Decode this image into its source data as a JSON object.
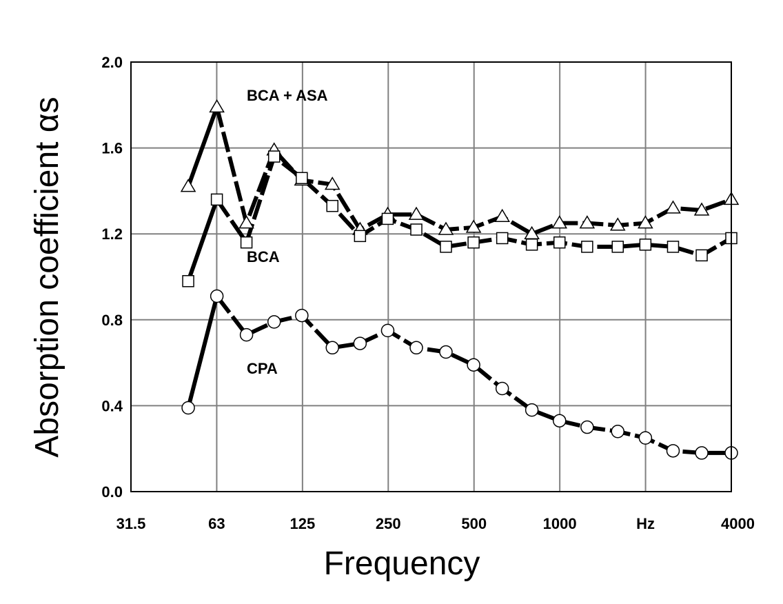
{
  "chart_data": {
    "type": "line",
    "title": "",
    "xlabel": "Frequency",
    "ylabel": "Absorption coefficient αs",
    "x_scale": "log2",
    "x_unit": "Hz",
    "xlim": [
      31.5,
      4000
    ],
    "ylim": [
      0,
      2.0
    ],
    "grid": true,
    "x_tick_labels": [
      "31.5",
      "63",
      "125",
      "250",
      "500",
      "1000",
      "Hz",
      "4000"
    ],
    "y_tick_labels": [
      "0.0",
      "0.4",
      "0.8",
      "1.2",
      "1.6",
      "2.0"
    ],
    "y_ticks": [
      0,
      0.4,
      0.8,
      1.2,
      1.6,
      2.0
    ],
    "x": [
      50,
      63,
      80,
      100,
      125,
      160,
      200,
      250,
      315,
      400,
      500,
      630,
      800,
      1000,
      1250,
      1600,
      2000,
      2500,
      3150,
      4000
    ],
    "series": [
      {
        "name": "BCA + ASA",
        "marker": "triangle",
        "values": [
          1.42,
          1.79,
          1.25,
          1.59,
          1.45,
          1.43,
          1.22,
          1.29,
          1.29,
          1.22,
          1.23,
          1.28,
          1.2,
          1.25,
          1.25,
          1.24,
          1.25,
          1.32,
          1.31,
          1.36
        ]
      },
      {
        "name": "BCA",
        "marker": "square",
        "values": [
          0.98,
          1.36,
          1.16,
          1.56,
          1.46,
          1.33,
          1.19,
          1.27,
          1.22,
          1.14,
          1.16,
          1.18,
          1.15,
          1.16,
          1.14,
          1.14,
          1.15,
          1.14,
          1.1,
          1.18
        ]
      },
      {
        "name": "CPA",
        "marker": "circle",
        "values": [
          0.39,
          0.91,
          0.73,
          0.79,
          0.82,
          0.67,
          0.69,
          0.75,
          0.67,
          0.65,
          0.59,
          0.48,
          0.38,
          0.33,
          0.3,
          0.28,
          0.25,
          0.19,
          0.18,
          0.18
        ]
      }
    ],
    "colors": {
      "line": "#000000",
      "marker_fill": "#ffffff",
      "grid": "#808080",
      "background": "#ffffff"
    }
  }
}
